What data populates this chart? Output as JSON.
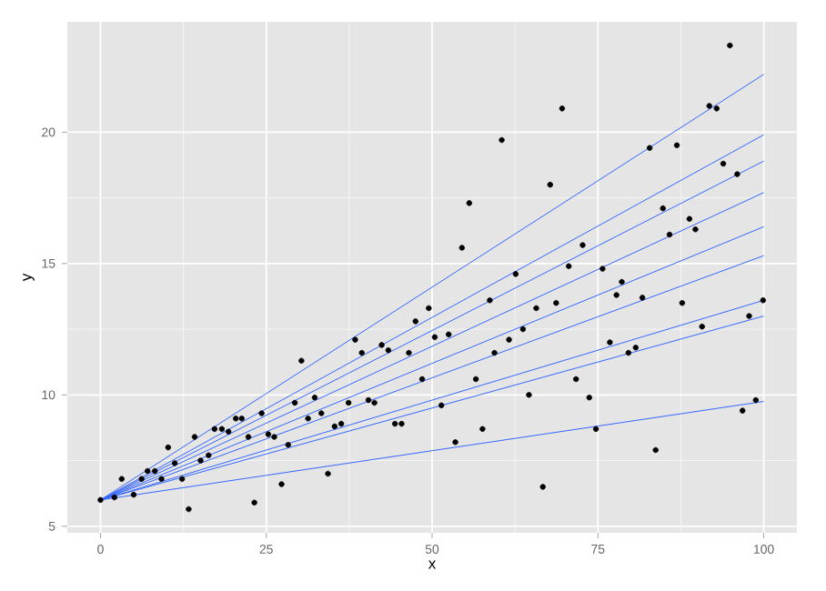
{
  "chart_data": {
    "type": "scatter",
    "xlabel": "x",
    "ylabel": "y",
    "xlim": [
      -5,
      105
    ],
    "ylim": [
      4.75,
      24.2
    ],
    "xticks": [
      0,
      25,
      50,
      75,
      100
    ],
    "yticks": [
      5,
      10,
      15,
      20
    ],
    "grid": true,
    "series": [
      {
        "type": "scatter",
        "color": "#000000",
        "marker": "circle",
        "x": [
          0,
          2.1,
          3.2,
          5.0,
          6.2,
          7.1,
          8.2,
          9.2,
          10.2,
          11.2,
          12.3,
          13.3,
          14.2,
          15.1,
          16.3,
          17.2,
          18.3,
          19.3,
          20.4,
          21.3,
          22.3,
          23.2,
          24.3,
          25.3,
          26.2,
          27.3,
          28.3,
          29.3,
          30.3,
          31.3,
          32.3,
          33.3,
          34.3,
          35.3,
          36.3,
          37.4,
          38.4,
          39.4,
          40.4,
          41.3,
          42.4,
          43.4,
          44.4,
          45.4,
          46.5,
          47.5,
          48.5,
          49.5,
          50.4,
          51.4,
          52.5,
          53.5,
          54.5,
          55.6,
          56.6,
          57.6,
          58.7,
          59.4,
          60.5,
          61.6,
          62.6,
          63.7,
          64.6,
          65.7,
          66.7,
          67.8,
          68.7,
          69.6,
          70.6,
          71.7,
          72.7,
          73.7,
          74.7,
          75.7,
          76.8,
          77.8,
          78.6,
          79.6,
          80.7,
          81.7,
          82.8,
          83.7,
          84.8,
          85.8,
          86.9,
          87.7,
          88.8,
          89.7,
          90.7,
          91.8,
          92.9,
          93.9,
          94.9,
          96.0,
          96.8,
          97.8,
          98.8,
          99.9
        ],
        "values": [
          6.0,
          6.1,
          6.8,
          6.2,
          6.8,
          7.1,
          7.1,
          6.8,
          8.0,
          7.4,
          6.8,
          5.65,
          8.4,
          7.5,
          7.7,
          8.7,
          8.7,
          8.6,
          9.1,
          9.1,
          8.4,
          5.9,
          9.3,
          8.5,
          8.4,
          6.6,
          8.1,
          9.7,
          11.3,
          9.1,
          9.9,
          9.3,
          7.0,
          8.8,
          8.9,
          9.7,
          12.1,
          11.6,
          9.8,
          9.7,
          11.9,
          11.7,
          8.9,
          8.9,
          11.6,
          12.8,
          10.6,
          13.3,
          12.2,
          9.6,
          12.3,
          8.2,
          15.6,
          17.3,
          10.6,
          8.7,
          13.6,
          11.6,
          19.7,
          12.1,
          14.6,
          12.5,
          10.0,
          13.3,
          6.5,
          18.0,
          13.5,
          20.9,
          14.9,
          10.6,
          15.7,
          9.9,
          8.7,
          14.8,
          12.0,
          13.8,
          14.3,
          11.6,
          11.8,
          13.7,
          19.4,
          7.9,
          17.1,
          16.1,
          19.5,
          13.5,
          16.7,
          16.3,
          12.6,
          21.0,
          20.9,
          18.8,
          23.3,
          18.4,
          9.4,
          13.0,
          9.8,
          13.6
        ]
      },
      {
        "type": "line",
        "color": "#3366ff",
        "x": [
          0,
          100
        ],
        "values": [
          6.0,
          22.2
        ]
      },
      {
        "type": "line",
        "color": "#3366ff",
        "x": [
          0,
          100
        ],
        "values": [
          6.0,
          19.9
        ]
      },
      {
        "type": "line",
        "color": "#3366ff",
        "x": [
          0,
          100
        ],
        "values": [
          6.0,
          18.9
        ]
      },
      {
        "type": "line",
        "color": "#3366ff",
        "x": [
          0,
          100
        ],
        "values": [
          6.0,
          17.7
        ]
      },
      {
        "type": "line",
        "color": "#3366ff",
        "x": [
          0,
          100
        ],
        "values": [
          6.0,
          16.4
        ]
      },
      {
        "type": "line",
        "color": "#3366ff",
        "x": [
          0,
          100
        ],
        "values": [
          6.0,
          15.3
        ]
      },
      {
        "type": "line",
        "color": "#3366ff",
        "x": [
          0,
          100
        ],
        "values": [
          6.0,
          13.6
        ]
      },
      {
        "type": "line",
        "color": "#3366ff",
        "x": [
          0,
          100
        ],
        "values": [
          6.0,
          13.0
        ]
      },
      {
        "type": "line",
        "color": "#3366ff",
        "x": [
          0,
          100
        ],
        "values": [
          6.0,
          9.75
        ]
      }
    ]
  }
}
